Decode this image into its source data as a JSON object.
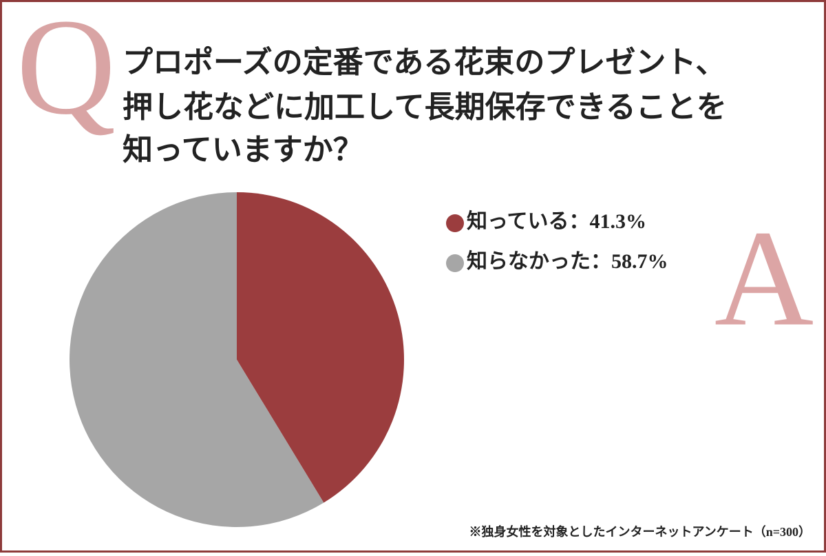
{
  "chart_data": {
    "type": "pie",
    "q_mark": "Q",
    "a_mark": "A",
    "title_lines": [
      "プロポーズの定番である花束のプレゼント、",
      "押し花などに加工して長期保存できることを",
      "知っていますか？"
    ],
    "categories": [
      "知っている",
      "知らなかった"
    ],
    "values": [
      41.3,
      58.7
    ],
    "value_labels": [
      "：41.3%",
      "：58.7%"
    ],
    "colors": [
      "#9b3d3e",
      "#a6a6a6"
    ],
    "note": "※独身女性を対象としたインターネットアンケート（n=300）"
  }
}
